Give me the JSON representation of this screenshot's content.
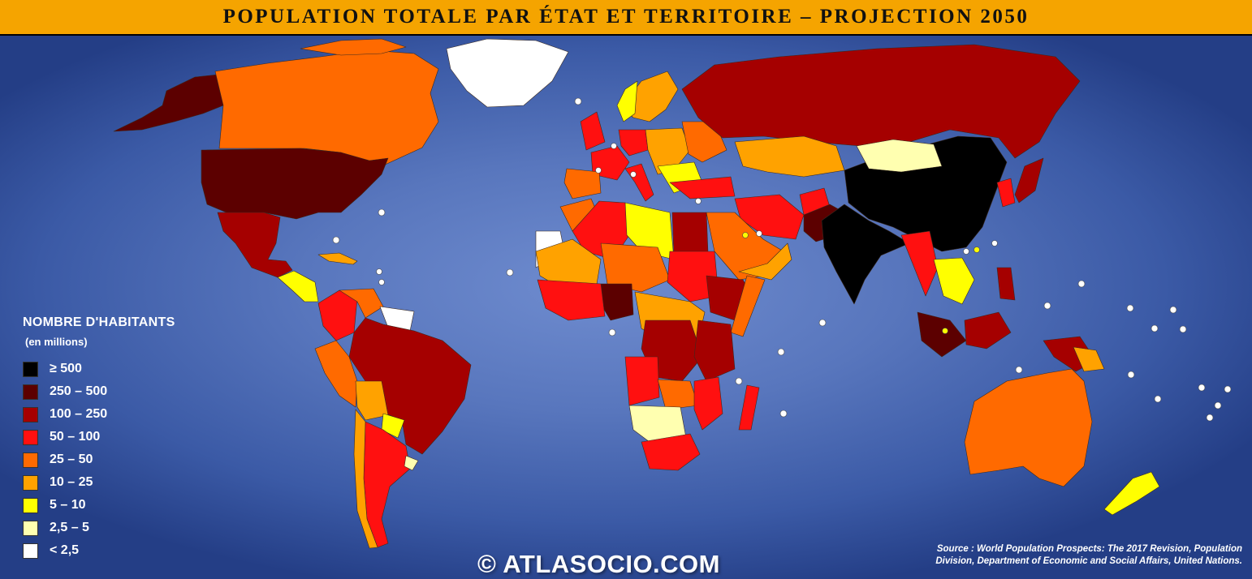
{
  "title": "POPULATION TOTALE PAR ÉTAT ET TERRITOIRE – PROJECTION 2050",
  "legend": {
    "title": "NOMBRE D'HABITANTS",
    "subtitle": "(en millions)",
    "items": [
      {
        "label": "≥ 500",
        "color": "#000000"
      },
      {
        "label": "250 – 500",
        "color": "#5c0000"
      },
      {
        "label": "100 – 250",
        "color": "#a50000"
      },
      {
        "label": "50 – 100",
        "color": "#ff1010"
      },
      {
        "label": "25 – 50",
        "color": "#ff6a00"
      },
      {
        "label": "10 – 25",
        "color": "#ffa200"
      },
      {
        "label": "5 – 10",
        "color": "#ffff00"
      },
      {
        "label": "2,5 – 5",
        "color": "#ffffb0"
      },
      {
        "label": "< 2,5",
        "color": "#ffffff"
      }
    ]
  },
  "copyright": "© ATLASOCIO.COM",
  "source": {
    "line1": "Source : World Population Prospects: The 2017 Revision, Population",
    "line2": "Division, Department of Economic and Social Affairs, United Nations."
  }
}
